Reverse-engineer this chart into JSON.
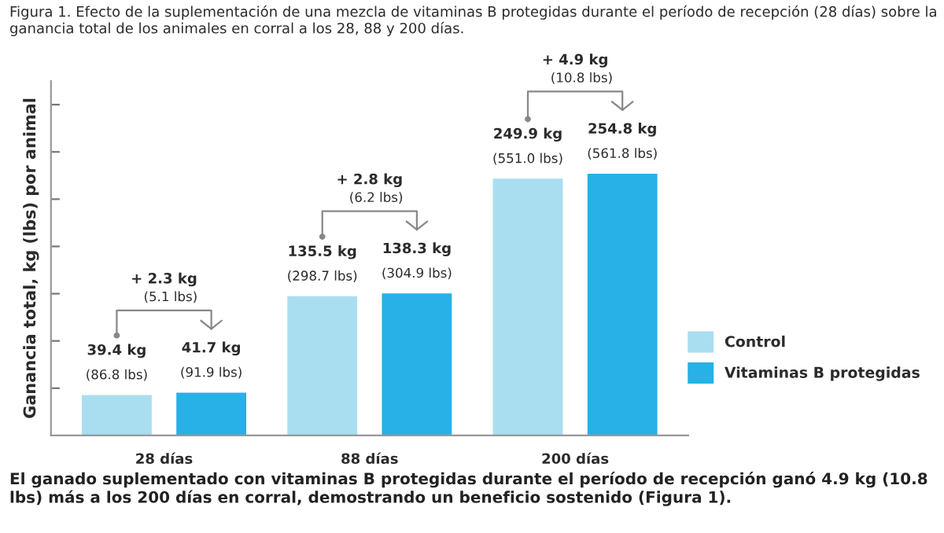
{
  "chart_data": {
    "type": "bar",
    "title": "Figura 1. Efecto de la suplementación de una mezcla de vitaminas B protegidas durante el período de recepción (28 días) sobre la ganancia total de los animales en corral a los 28, 88 y 200 días.",
    "ylabel": "Ganancia total, kg (lbs) por animal",
    "categories": [
      "28 días",
      "88 días",
      "200 días"
    ],
    "series": [
      {
        "name": "Control",
        "color": "#a9def0",
        "values": [
          39.4,
          135.5,
          249.9
        ],
        "value_labels": [
          "39.4 kg\n(86.8 lbs)",
          "135.5 kg\n(298.7 lbs)",
          "249.9 kg\n(551.0 lbs)"
        ]
      },
      {
        "name": "Vitaminas B protegidas",
        "color": "#27b1e6",
        "values": [
          41.7,
          138.3,
          254.8
        ],
        "value_labels": [
          "41.7 kg\n(91.9 lbs)",
          "138.3 kg\n(304.9 lbs)",
          "254.8 kg\n(561.8 lbs)"
        ]
      }
    ],
    "ylim": [
      0,
      345
    ],
    "yticks": [
      {
        "value": 46,
        "label": null
      },
      {
        "value": 92,
        "label": null
      },
      {
        "value": 138,
        "label": null
      },
      {
        "value": 184,
        "label": null
      },
      {
        "value": 230,
        "label": null
      },
      {
        "value": 276,
        "label": null
      },
      {
        "value": 322,
        "label": null
      }
    ],
    "legend": "right",
    "annotations": [
      "+ 2.3 kg\n(5.1 lbs)",
      "+ 2.8 kg\n(6.2 lbs)",
      "+ 4.9 kg\n(10.8 lbs)",
      "El ganado suplementado con vitaminas B protegidas durante el período de recepción ganó 4.9 kg (10.8 lbs) más a los 200 días en corral, demostrando un beneficio sostenido (Figura 1)."
    ]
  }
}
